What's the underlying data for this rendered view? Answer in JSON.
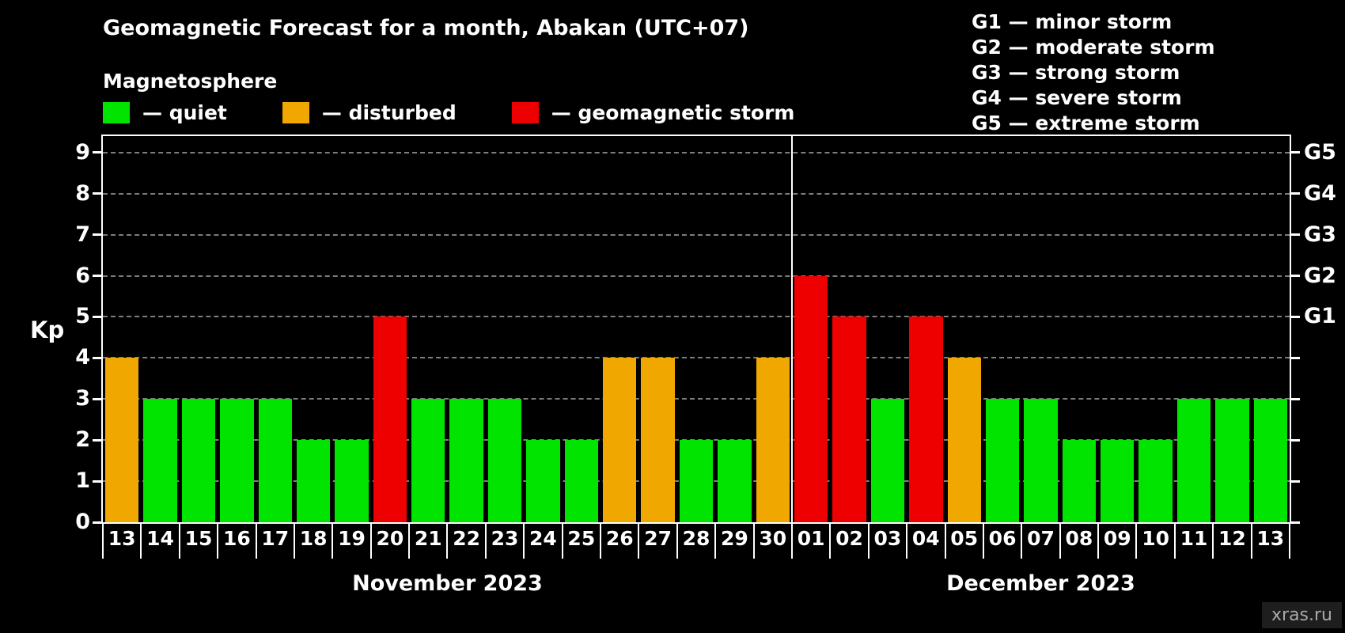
{
  "page": {
    "title": "Geomagnetic Forecast for a month, Abakan (UTC+07)",
    "subtitle": "Magnetosphere",
    "watermark": "xras.ru"
  },
  "legend": {
    "items": [
      {
        "key": "quiet",
        "label": "— quiet",
        "color": "#00e400"
      },
      {
        "key": "disturbed",
        "label": "— disturbed",
        "color": "#f0a800"
      },
      {
        "key": "storm",
        "label": "— geomagnetic storm",
        "color": "#ee0000"
      }
    ]
  },
  "g_scale_legend": [
    "G1 — minor storm",
    "G2 — moderate storm",
    "G3 — strong storm",
    "G4 — severe storm",
    "G5 — extreme storm"
  ],
  "chart_data": {
    "type": "bar",
    "title": "Geomagnetic Forecast for a month, Abakan (UTC+07)",
    "ylabel": "Kp",
    "ylim": [
      0,
      9.4
    ],
    "yticks": [
      0,
      1,
      2,
      3,
      4,
      5,
      6,
      7,
      8,
      9
    ],
    "grid": "horizontal dashed",
    "right_axis": [
      {
        "label": "G1",
        "value": 5
      },
      {
        "label": "G2",
        "value": 6
      },
      {
        "label": "G3",
        "value": 7
      },
      {
        "label": "G4",
        "value": 8
      },
      {
        "label": "G5",
        "value": 9
      }
    ],
    "thresholds": {
      "quiet_max": 3,
      "disturbed_max": 4
    },
    "colors": {
      "quiet": "#00e400",
      "disturbed": "#f0a800",
      "storm": "#ee0000"
    },
    "months": [
      {
        "label": "November 2023",
        "categories": [
          "13",
          "14",
          "15",
          "16",
          "17",
          "18",
          "19",
          "20",
          "21",
          "22",
          "23",
          "24",
          "25",
          "26",
          "27",
          "28",
          "29",
          "30"
        ],
        "values": [
          4,
          3,
          3,
          3,
          3,
          2,
          2,
          5,
          3,
          3,
          3,
          2,
          2,
          4,
          4,
          2,
          2,
          4
        ]
      },
      {
        "label": "December 2023",
        "categories": [
          "01",
          "02",
          "03",
          "04",
          "05",
          "06",
          "07",
          "08",
          "09",
          "10",
          "11",
          "12",
          "13"
        ],
        "values": [
          6,
          5,
          3,
          5,
          4,
          3,
          3,
          2,
          2,
          2,
          3,
          3,
          3
        ]
      }
    ]
  }
}
